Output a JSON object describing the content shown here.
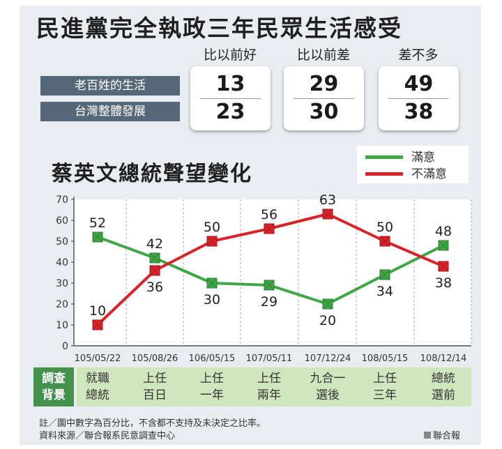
{
  "title": "民進黨完全執政三年民眾生活感受",
  "survey": {
    "columns": [
      "比以前好",
      "比以前差",
      "差不多"
    ],
    "rows": [
      {
        "label": "老百姓的生活",
        "values": [
          "13",
          "29",
          "49"
        ]
      },
      {
        "label": "台灣整體發展",
        "values": [
          "23",
          "30",
          "38"
        ]
      }
    ]
  },
  "chart_title": "蔡英文總統聲望變化",
  "legend": [
    {
      "label": "滿意",
      "color": "#3fa646"
    },
    {
      "label": "不滿意",
      "color": "#d8232a"
    }
  ],
  "chart_data": {
    "type": "line",
    "title": "蔡英文總統聲望變化",
    "categories": [
      "105/05/22",
      "105/08/26",
      "106/05/15",
      "107/05/11",
      "107/12/24",
      "108/05/15",
      "108/12/14"
    ],
    "series": [
      {
        "name": "滿意",
        "values": [
          52,
          42,
          30,
          29,
          20,
          34,
          48
        ],
        "color": "#3fa646"
      },
      {
        "name": "不滿意",
        "values": [
          10,
          36,
          50,
          56,
          63,
          50,
          38
        ],
        "color": "#d8232a"
      }
    ],
    "ylim": [
      0,
      70
    ],
    "yticks": [
      0,
      10,
      20,
      30,
      40,
      50,
      60,
      70
    ],
    "xlabel": "",
    "ylabel": "",
    "grid": "vertical dashed"
  },
  "background": {
    "label": [
      "調查",
      "背景"
    ],
    "items": [
      [
        "就職",
        "總統"
      ],
      [
        "上任",
        "百日"
      ],
      [
        "上任",
        "一年"
      ],
      [
        "上任",
        "兩年"
      ],
      [
        "九合一",
        "選後"
      ],
      [
        "上任",
        "三年"
      ],
      [
        "總統",
        "選前"
      ]
    ]
  },
  "notes": [
    "註／圖中數字為百分比，不含都不支持及未決定之比率。",
    "資料來源／聯合報系民意調查中心"
  ],
  "credit": "聯合報"
}
